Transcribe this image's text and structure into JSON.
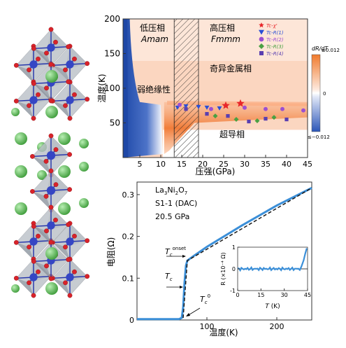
{
  "phase_diagram": {
    "ylabel": "温度(K)",
    "xlabel": "压强(GPa)",
    "y_ticks": [
      "200",
      "150",
      "100",
      "50"
    ],
    "x_ticks": [
      "5",
      "10",
      "15",
      "20",
      "25",
      "30",
      "35",
      "40",
      "45"
    ],
    "region_low": "低压相",
    "region_low_group": "Amam",
    "region_high": "高压相",
    "region_high_group": "Fmmm",
    "region_insulator": "弱绝缘性",
    "region_strange_metal": "奇异金属相",
    "region_sc": "超导相",
    "colorbar_title": "dR/dT",
    "colorbar_top": "≥0.012",
    "colorbar_mid": "0",
    "colorbar_bottom": "≤−0.012",
    "legend": [
      {
        "label": "Tc-χ'",
        "marker": "star",
        "color": "#e8262a"
      },
      {
        "label": "Tc-R(1)",
        "marker": "triangle",
        "color": "#2b4fd6"
      },
      {
        "label": "Tc-R(2)",
        "marker": "circle",
        "color": "#9b4fd1"
      },
      {
        "label": "Tc-R(3)",
        "marker": "diamond",
        "color": "#4aa043"
      },
      {
        "label": "Tc-R(4)",
        "marker": "square",
        "color": "#5a3fb0"
      }
    ],
    "colors": {
      "high": "#f07a2c",
      "low": "#2b56b8",
      "mid": "#ffffff"
    }
  },
  "chart_data": {
    "type": "line",
    "xlabel": "温度(K)",
    "ylabel": "电阻(Ω)",
    "xlim": [
      0,
      250
    ],
    "ylim": [
      0,
      0.33
    ],
    "x_ticks": [
      "100",
      "200"
    ],
    "y_ticks": [
      "0.3",
      "0.2",
      "0.1",
      "0"
    ],
    "sample_lines": [
      "La3Ni2O7",
      "S1-1 (DAC)",
      "20.5 GPa"
    ],
    "annotations": [
      "Tc onset",
      "Tc",
      "Tc 0"
    ],
    "series": [
      {
        "color": "#3b8fd8",
        "x": [
          0,
          40,
          60,
          64,
          66,
          68,
          70,
          72,
          80,
          100,
          150,
          200,
          250
        ],
        "y": [
          0.002,
          0.002,
          0.002,
          0.005,
          0.03,
          0.09,
          0.13,
          0.142,
          0.152,
          0.175,
          0.226,
          0.274,
          0.316
        ]
      }
    ],
    "inset": {
      "xlabel": "T (K)",
      "ylabel": "R (×10⁻⁴ Ω)",
      "x_ticks": [
        "0",
        "15",
        "30",
        "45"
      ],
      "y_ticks": [
        "1",
        "0",
        "-1"
      ],
      "xlim": [
        0,
        45
      ],
      "ylim": [
        -1,
        1
      ]
    }
  }
}
